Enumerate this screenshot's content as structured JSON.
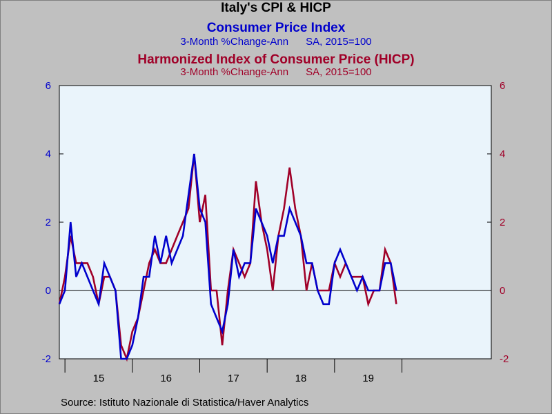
{
  "colors": {
    "background": "#c0c0c0",
    "plot_background": "#eaf4fb",
    "cpi": "#0000cc",
    "hicp": "#a00028",
    "axis": "#000000"
  },
  "header": {
    "title": "Italy's CPI & HICP",
    "cpi_title": "Consumer Price Index",
    "cpi_subtitle": "3-Month %Change-Ann      SA, 2015=100",
    "hicp_title": "Harmonized Index of Consumer Price (HICP)",
    "hicp_subtitle": "3-Month %Change-Ann      SA, 2015=100"
  },
  "footer": {
    "source": "Source:  Istituto Nazionale di Statistica/Haver Analytics"
  },
  "chart_data": {
    "type": "line",
    "x_tick_labels": [
      "15",
      "16",
      "17",
      "18",
      "19"
    ],
    "y_tick_labels": [
      "-2",
      "0",
      "2",
      "4",
      "6"
    ],
    "ylim": [
      -2,
      6
    ],
    "grid": false,
    "zero_line": true,
    "x_start": "2014-12",
    "series": [
      {
        "name": "Consumer Price Index",
        "axis": "left",
        "values": [
          -0.4,
          0.0,
          2.0,
          0.4,
          0.8,
          0.4,
          0.0,
          -0.4,
          0.8,
          0.4,
          0.0,
          -2.0,
          -2.0,
          -1.6,
          -0.8,
          0.4,
          0.4,
          1.6,
          0.8,
          1.6,
          0.8,
          1.2,
          1.6,
          2.8,
          4.0,
          2.4,
          2.0,
          -0.4,
          -0.8,
          -1.2,
          -0.4,
          1.2,
          0.4,
          0.8,
          0.8,
          2.4,
          2.0,
          1.6,
          0.8,
          1.6,
          1.6,
          2.4,
          2.0,
          1.6,
          0.8,
          0.8,
          0.0,
          -0.4,
          -0.4,
          0.8,
          1.2,
          0.8,
          0.4,
          0.0,
          0.4,
          0.0,
          0.0,
          0.0,
          0.8,
          0.8,
          0.0
        ]
      },
      {
        "name": "Harmonized Index of Consumer Price (HICP)",
        "axis": "right",
        "values": [
          -0.4,
          0.4,
          1.6,
          0.8,
          0.8,
          0.8,
          0.4,
          -0.4,
          0.4,
          0.4,
          0.0,
          -1.6,
          -2.0,
          -1.2,
          -0.8,
          0.0,
          0.8,
          1.2,
          0.8,
          0.8,
          1.2,
          1.6,
          2.0,
          2.4,
          4.0,
          2.0,
          2.8,
          0.0,
          0.0,
          -1.6,
          0.0,
          1.2,
          0.8,
          0.4,
          0.8,
          3.2,
          2.0,
          1.2,
          0.0,
          1.6,
          2.4,
          3.6,
          2.4,
          1.6,
          0.0,
          0.8,
          0.0,
          0.0,
          0.0,
          0.8,
          0.4,
          0.8,
          0.4,
          0.4,
          0.4,
          -0.4,
          0.0,
          0.0,
          1.2,
          0.8,
          -0.4
        ]
      }
    ]
  }
}
